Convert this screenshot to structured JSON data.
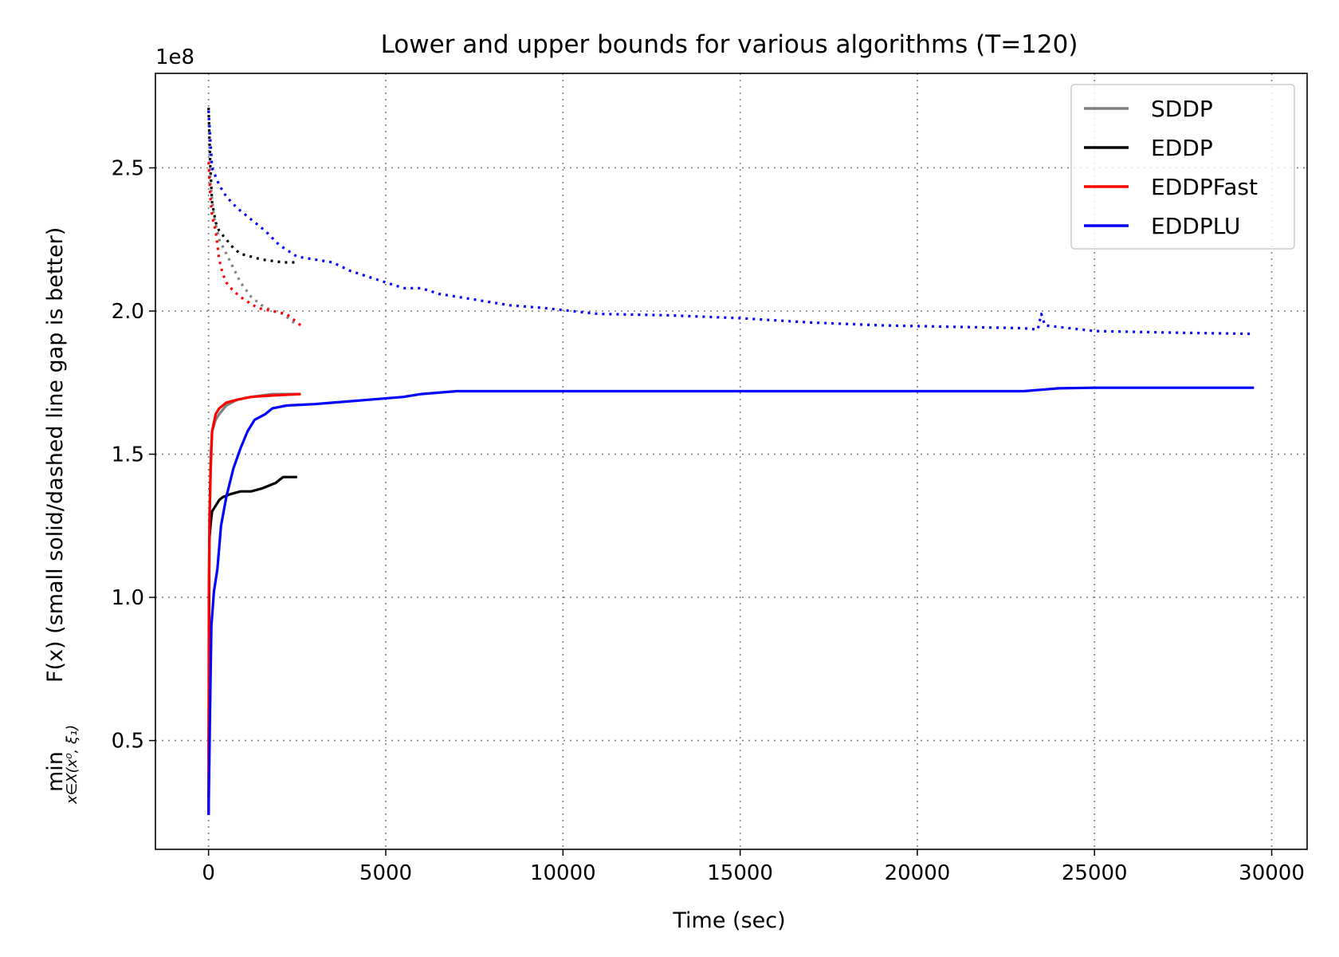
{
  "chart_data": {
    "type": "line",
    "title": "Lower and upper bounds for various algorithms (T=120)",
    "xlabel": "Time (sec)",
    "ylabel": {
      "min_word": "min",
      "subscript": "x∈X(x⁰, ξ₁)",
      "rest": "F(x) (small solid/dashed line gap is better)"
    },
    "y_offset_text": "1e8",
    "xlim": [
      -1500,
      31000
    ],
    "ylim": [
      0.12,
      2.83
    ],
    "x_ticks": [
      0,
      5000,
      10000,
      15000,
      20000,
      25000,
      30000
    ],
    "x_tick_labels": [
      "0",
      "5000",
      "10000",
      "15000",
      "20000",
      "25000",
      "30000"
    ],
    "y_ticks": [
      0.5,
      1.0,
      1.5,
      2.0,
      2.5
    ],
    "y_tick_labels": [
      "0.5",
      "1.0",
      "1.5",
      "2.0",
      "2.5"
    ],
    "grid": true,
    "legend_position": "top-right",
    "series": [
      {
        "name": "SDDP",
        "color": "#808080",
        "lower": [
          [
            0,
            0.24
          ],
          [
            20,
            1.2
          ],
          [
            60,
            1.5
          ],
          [
            100,
            1.58
          ],
          [
            200,
            1.62
          ],
          [
            300,
            1.64
          ],
          [
            500,
            1.67
          ],
          [
            800,
            1.69
          ],
          [
            1200,
            1.7
          ],
          [
            1800,
            1.71
          ],
          [
            2600,
            1.71
          ]
        ],
        "upper": [
          [
            0,
            2.7
          ],
          [
            50,
            2.45
          ],
          [
            150,
            2.33
          ],
          [
            300,
            2.25
          ],
          [
            500,
            2.2
          ],
          [
            700,
            2.15
          ],
          [
            900,
            2.1
          ],
          [
            1200,
            2.05
          ],
          [
            1500,
            2.02
          ],
          [
            1800,
            2.0
          ],
          [
            2100,
            1.99
          ],
          [
            2300,
            1.97
          ],
          [
            2500,
            1.95
          ]
        ]
      },
      {
        "name": "EDDP",
        "color": "#000000",
        "lower": [
          [
            0,
            0.24
          ],
          [
            20,
            1.2
          ],
          [
            60,
            1.26
          ],
          [
            100,
            1.3
          ],
          [
            200,
            1.32
          ],
          [
            300,
            1.34
          ],
          [
            400,
            1.35
          ],
          [
            600,
            1.36
          ],
          [
            900,
            1.37
          ],
          [
            1200,
            1.37
          ],
          [
            1500,
            1.38
          ],
          [
            1700,
            1.39
          ],
          [
            1900,
            1.4
          ],
          [
            2000,
            1.41
          ],
          [
            2100,
            1.42
          ],
          [
            2500,
            1.42
          ]
        ],
        "upper": [
          [
            0,
            2.71
          ],
          [
            50,
            2.5
          ],
          [
            100,
            2.38
          ],
          [
            200,
            2.31
          ],
          [
            300,
            2.28
          ],
          [
            500,
            2.25
          ],
          [
            700,
            2.22
          ],
          [
            900,
            2.2
          ],
          [
            1200,
            2.19
          ],
          [
            1500,
            2.18
          ],
          [
            1800,
            2.175
          ],
          [
            2100,
            2.17
          ],
          [
            2500,
            2.17
          ]
        ]
      },
      {
        "name": "EDDPFast",
        "color": "#ff0000",
        "lower": [
          [
            0,
            0.24
          ],
          [
            10,
            1.0
          ],
          [
            30,
            1.3
          ],
          [
            60,
            1.45
          ],
          [
            100,
            1.58
          ],
          [
            200,
            1.64
          ],
          [
            300,
            1.66
          ],
          [
            500,
            1.68
          ],
          [
            800,
            1.69
          ],
          [
            1200,
            1.7
          ],
          [
            1800,
            1.705
          ],
          [
            2600,
            1.71
          ]
        ],
        "upper": [
          [
            0,
            2.52
          ],
          [
            50,
            2.4
          ],
          [
            100,
            2.33
          ],
          [
            200,
            2.28
          ],
          [
            300,
            2.18
          ],
          [
            400,
            2.13
          ],
          [
            500,
            2.1
          ],
          [
            700,
            2.07
          ],
          [
            1000,
            2.04
          ],
          [
            1400,
            2.01
          ],
          [
            1800,
            2.0
          ],
          [
            2200,
            1.99
          ],
          [
            2600,
            1.95
          ]
        ]
      },
      {
        "name": "EDDPLU",
        "color": "#0000ff",
        "lower": [
          [
            0,
            0.24
          ],
          [
            40,
            0.6
          ],
          [
            80,
            0.9
          ],
          [
            150,
            1.02
          ],
          [
            250,
            1.1
          ],
          [
            350,
            1.25
          ],
          [
            500,
            1.35
          ],
          [
            700,
            1.45
          ],
          [
            900,
            1.52
          ],
          [
            1100,
            1.58
          ],
          [
            1300,
            1.62
          ],
          [
            1600,
            1.64
          ],
          [
            1800,
            1.66
          ],
          [
            2200,
            1.67
          ],
          [
            3000,
            1.675
          ],
          [
            3500,
            1.68
          ],
          [
            4000,
            1.685
          ],
          [
            4500,
            1.69
          ],
          [
            5500,
            1.7
          ],
          [
            6000,
            1.71
          ],
          [
            7000,
            1.72
          ],
          [
            10000,
            1.72
          ],
          [
            15000,
            1.72
          ],
          [
            18000,
            1.72
          ],
          [
            20000,
            1.72
          ],
          [
            23000,
            1.72
          ],
          [
            23500,
            1.725
          ],
          [
            24000,
            1.73
          ],
          [
            25000,
            1.732
          ],
          [
            29500,
            1.732
          ]
        ],
        "upper": [
          [
            0,
            2.7
          ],
          [
            100,
            2.5
          ],
          [
            300,
            2.44
          ],
          [
            500,
            2.4
          ],
          [
            800,
            2.36
          ],
          [
            1000,
            2.34
          ],
          [
            1300,
            2.31
          ],
          [
            1600,
            2.28
          ],
          [
            2000,
            2.23
          ],
          [
            2500,
            2.19
          ],
          [
            3000,
            2.18
          ],
          [
            3500,
            2.17
          ],
          [
            4000,
            2.14
          ],
          [
            4500,
            2.12
          ],
          [
            5000,
            2.1
          ],
          [
            5500,
            2.08
          ],
          [
            6000,
            2.08
          ],
          [
            6500,
            2.06
          ],
          [
            7500,
            2.04
          ],
          [
            8500,
            2.02
          ],
          [
            9500,
            2.01
          ],
          [
            11000,
            1.99
          ],
          [
            13000,
            1.985
          ],
          [
            15000,
            1.975
          ],
          [
            17000,
            1.96
          ],
          [
            19000,
            1.95
          ],
          [
            21000,
            1.945
          ],
          [
            23000,
            1.94
          ],
          [
            23400,
            1.935
          ],
          [
            23500,
            1.99
          ],
          [
            23600,
            1.95
          ],
          [
            25000,
            1.93
          ],
          [
            27000,
            1.925
          ],
          [
            29500,
            1.92
          ]
        ]
      }
    ]
  }
}
